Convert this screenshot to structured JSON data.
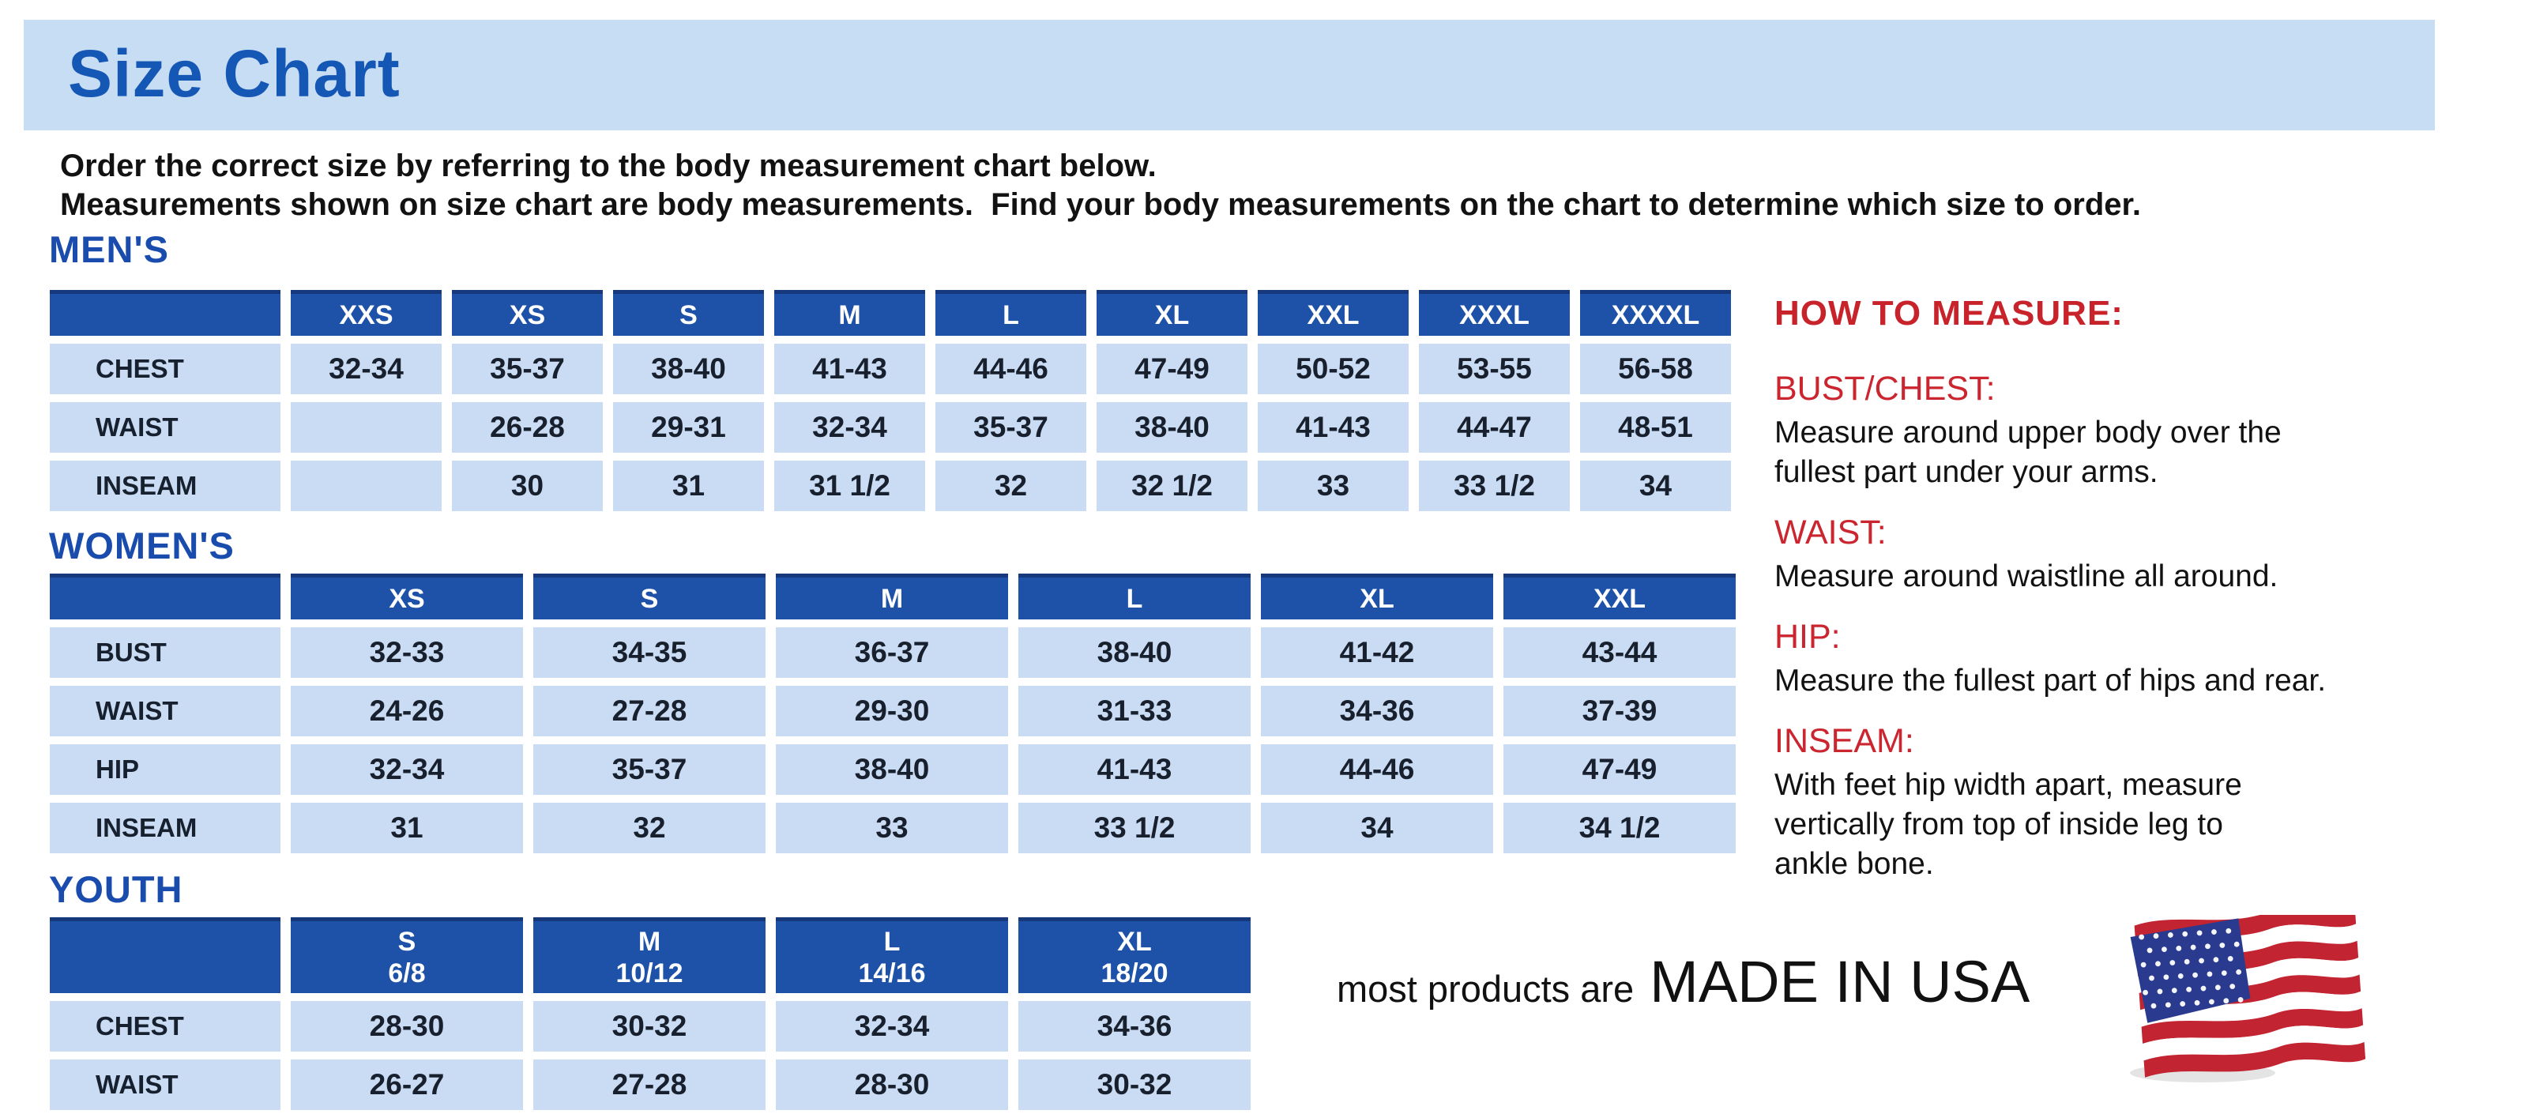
{
  "title": "Size Chart",
  "intro": {
    "line1": "Order the correct size by referring to the body measurement chart below.",
    "line2": "Measurements shown on size chart are body measurements.  Find your body measurements on the chart to determine which size to order."
  },
  "sections": [
    {
      "id": "mens",
      "label": "MEN'S",
      "columns": [
        "XXS",
        "XS",
        "S",
        "M",
        "L",
        "XL",
        "XXL",
        "XXXL",
        "XXXXL"
      ],
      "rows": [
        {
          "label": "CHEST",
          "values": [
            "32-34",
            "35-37",
            "38-40",
            "41-43",
            "44-46",
            "47-49",
            "50-52",
            "53-55",
            "56-58"
          ]
        },
        {
          "label": "WAIST",
          "values": [
            "",
            "26-28",
            "29-31",
            "32-34",
            "35-37",
            "38-40",
            "41-43",
            "44-47",
            "48-51"
          ]
        },
        {
          "label": "INSEAM",
          "values": [
            "",
            "30",
            "31",
            "31 1/2",
            "32",
            "32 1/2",
            "33",
            "33 1/2",
            "34"
          ]
        }
      ]
    },
    {
      "id": "womens",
      "label": "WOMEN'S",
      "columns": [
        "XS",
        "S",
        "M",
        "L",
        "XL",
        "XXL"
      ],
      "rows": [
        {
          "label": "BUST",
          "values": [
            "32-33",
            "34-35",
            "36-37",
            "38-40",
            "41-42",
            "43-44"
          ]
        },
        {
          "label": "WAIST",
          "values": [
            "24-26",
            "27-28",
            "29-30",
            "31-33",
            "34-36",
            "37-39"
          ]
        },
        {
          "label": "HIP",
          "values": [
            "32-34",
            "35-37",
            "38-40",
            "41-43",
            "44-46",
            "47-49"
          ]
        },
        {
          "label": "INSEAM",
          "values": [
            "31",
            "32",
            "33",
            "33 1/2",
            "34",
            "34 1/2"
          ]
        }
      ]
    },
    {
      "id": "youth",
      "label": "YOUTH",
      "columns": [
        "S\n6/8",
        "M\n10/12",
        "L\n14/16",
        "XL\n18/20"
      ],
      "rows": [
        {
          "label": "CHEST",
          "values": [
            "28-30",
            "30-32",
            "32-34",
            "34-36"
          ]
        },
        {
          "label": "WAIST",
          "values": [
            "26-27",
            "27-28",
            "28-30",
            "30-32"
          ]
        }
      ]
    }
  ],
  "how_to_measure": {
    "heading": "HOW TO MEASURE:",
    "items": [
      {
        "label": "BUST/CHEST:",
        "text": "Measure around upper body over the\nfullest part under your arms."
      },
      {
        "label": "WAIST:",
        "text": "Measure around waistline all around."
      },
      {
        "label": "HIP:",
        "text": "Measure the fullest part of hips and rear."
      },
      {
        "label": "INSEAM:",
        "text": "With feet hip width apart, measure\nvertically from top of inside leg to\nankle bone."
      }
    ]
  },
  "made_in_usa": {
    "prefix": "most products are",
    "emphasis": "MADE IN USA",
    "flag_icon": "us-flag-icon"
  },
  "colors": {
    "accent_blue": "#1a4cae",
    "title_text_blue": "#1557b4",
    "table_header_blue": "#1d52a8",
    "table_header_edge": "#15397c",
    "table_cell_blue": "#cadcf4",
    "title_bar_blue": "#c7ddf4",
    "red_heading": "#c8222b",
    "red_subheading": "#cb2630",
    "flag_red": "#c32431",
    "flag_blue": "#2a3b8f"
  }
}
